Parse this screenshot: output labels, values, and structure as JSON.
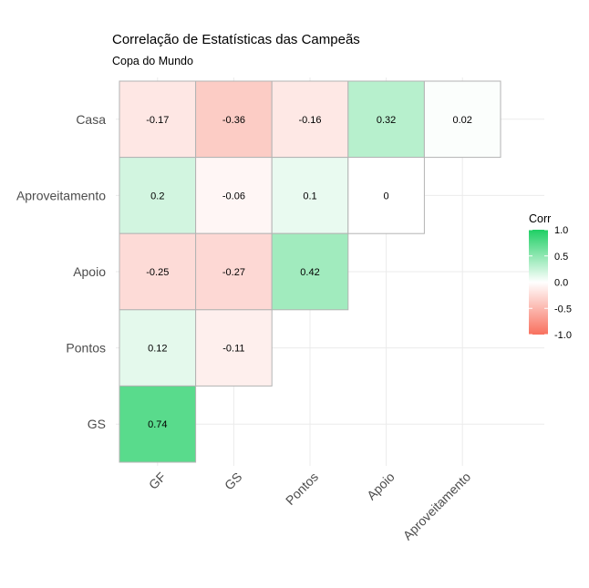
{
  "chart_data": {
    "type": "heatmap",
    "title": "Correlação de Estatísticas das Campeãs",
    "subtitle": "Copa do Mundo",
    "x_categories": [
      "GF",
      "GS",
      "Pontos",
      "Apoio",
      "Aproveitamento"
    ],
    "y_categories": [
      "Casa",
      "Aproveitamento",
      "Apoio",
      "Pontos",
      "GS"
    ],
    "cells": [
      {
        "y": "Casa",
        "x": "GF",
        "value": -0.17,
        "label": "-0.17"
      },
      {
        "y": "Casa",
        "x": "GS",
        "value": -0.36,
        "label": "-0.36"
      },
      {
        "y": "Casa",
        "x": "Pontos",
        "value": -0.16,
        "label": "-0.16"
      },
      {
        "y": "Casa",
        "x": "Apoio",
        "value": 0.32,
        "label": "0.32"
      },
      {
        "y": "Casa",
        "x": "Aproveitamento",
        "value": 0.02,
        "label": "0.02"
      },
      {
        "y": "Aproveitamento",
        "x": "GF",
        "value": 0.2,
        "label": "0.2"
      },
      {
        "y": "Aproveitamento",
        "x": "GS",
        "value": -0.06,
        "label": "-0.06"
      },
      {
        "y": "Aproveitamento",
        "x": "Pontos",
        "value": 0.1,
        "label": "0.1"
      },
      {
        "y": "Aproveitamento",
        "x": "Apoio",
        "value": 0,
        "label": "0"
      },
      {
        "y": "Apoio",
        "x": "GF",
        "value": -0.25,
        "label": "-0.25"
      },
      {
        "y": "Apoio",
        "x": "GS",
        "value": -0.27,
        "label": "-0.27"
      },
      {
        "y": "Apoio",
        "x": "Pontos",
        "value": 0.42,
        "label": "0.42"
      },
      {
        "y": "Pontos",
        "x": "GF",
        "value": 0.12,
        "label": "0.12"
      },
      {
        "y": "Pontos",
        "x": "GS",
        "value": -0.11,
        "label": "-0.11"
      },
      {
        "y": "GS",
        "x": "GF",
        "value": 0.74,
        "label": "0.74"
      }
    ],
    "legend": {
      "title": "Corr",
      "placement": "right",
      "ticks": [
        "1.0",
        "0.5",
        "0.0",
        "-0.5",
        "-1.0"
      ],
      "tick_values": [
        1.0,
        0.5,
        0.0,
        -0.5,
        -1.0
      ],
      "range": [
        -1,
        1
      ]
    },
    "colors": {
      "low": "#f8705e",
      "mid": "#ffffff",
      "high": "#1ecf64",
      "tile_border": "#b3b3b3",
      "grid": "#ebebeb"
    },
    "grid": true
  }
}
